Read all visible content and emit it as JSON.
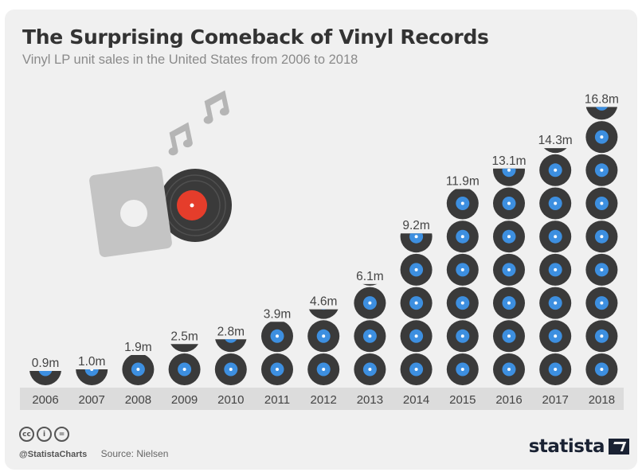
{
  "chart_data": {
    "type": "bar",
    "title": "The Surprising Comeback of Vinyl Records",
    "subtitle": "Vinyl LP unit sales in the United States from 2006 to 2018",
    "categories": [
      "2006",
      "2007",
      "2008",
      "2009",
      "2010",
      "2011",
      "2012",
      "2013",
      "2014",
      "2015",
      "2016",
      "2017",
      "2018"
    ],
    "values": [
      0.9,
      1.0,
      1.9,
      2.5,
      2.8,
      3.9,
      4.6,
      6.1,
      9.2,
      11.9,
      13.1,
      14.3,
      16.8
    ],
    "labels": [
      "0.9m",
      "1.0m",
      "1.9m",
      "2.5m",
      "2.8m",
      "3.9m",
      "4.6m",
      "6.1m",
      "9.2m",
      "11.9m",
      "13.1m",
      "14.3m",
      "16.8m"
    ],
    "unit": "m",
    "xlabel": "",
    "ylabel": "",
    "grid": false,
    "colors": {
      "record": "#3a3a3a",
      "record_center": "#3d8fe0",
      "axis_band": "#dcdcdc",
      "sleeve": "#c4c4c4",
      "label_red": "#e53d2b",
      "notes": "#b5b5b5"
    }
  },
  "footer": {
    "cc_icons": [
      "cc",
      "by",
      "nd"
    ],
    "handle": "@StatistaCharts",
    "source": "Source: Nielsen",
    "brand": "statista"
  },
  "decoration": {
    "icons": [
      "vinyl-sleeve-icon",
      "music-notes-icon"
    ]
  }
}
